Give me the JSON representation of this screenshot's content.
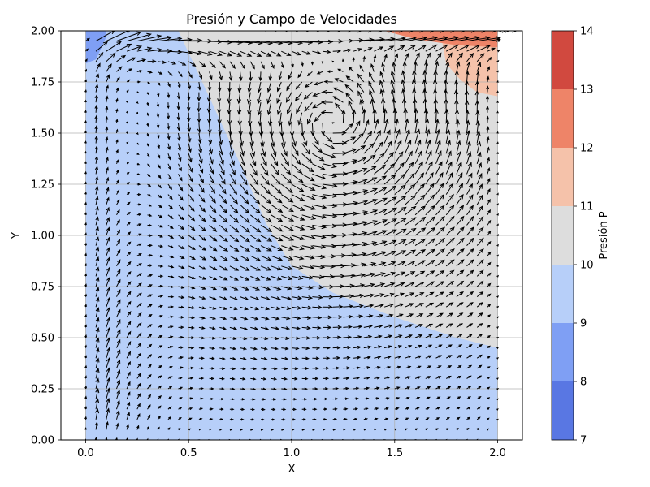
{
  "chart_data": {
    "type": "heatmap",
    "title": "Presión y Campo de Velocidades",
    "xlabel": "X",
    "ylabel": "Y",
    "xlim": [
      -0.12,
      2.12
    ],
    "ylim": [
      0.0,
      2.0
    ],
    "xticks": [
      "0.0",
      "0.5",
      "1.0",
      "1.5",
      "2.0"
    ],
    "yticks": [
      "0.00",
      "0.25",
      "0.50",
      "0.75",
      "1.00",
      "1.25",
      "1.50",
      "1.75",
      "2.00"
    ],
    "grid": true,
    "overlay": "quiver (velocity field arrows)",
    "vortex_center": [
      1.2,
      1.55
    ],
    "colorbar": {
      "label": "Presión P",
      "levels": [
        7,
        8,
        9,
        10,
        11,
        12,
        13,
        14
      ],
      "tick_labels": [
        "7",
        "8",
        "9",
        "10",
        "11",
        "12",
        "13",
        "14"
      ],
      "colors": [
        "#5977e3",
        "#7f9ff4",
        "#b7cff9",
        "#dddddd",
        "#f5c2aa",
        "#ee8468",
        "#d1493f"
      ]
    },
    "pressure_regions": [
      {
        "range": [
          9,
          10
        ],
        "area": "lower-left region, below diagonal boundary"
      },
      {
        "range": [
          10,
          11
        ],
        "area": "upper-right region above diagonal boundary from (0.5, 2.0) to (2.0, 0.45)"
      },
      {
        "range": [
          11,
          12
        ],
        "area": "top-right corner near (1.9, 1.8)"
      },
      {
        "range": [
          12,
          13
        ],
        "area": "top edge, upper-right"
      },
      {
        "range": [
          8,
          9
        ],
        "area": "top-left corner near (0.02, 1.9)"
      }
    ]
  }
}
